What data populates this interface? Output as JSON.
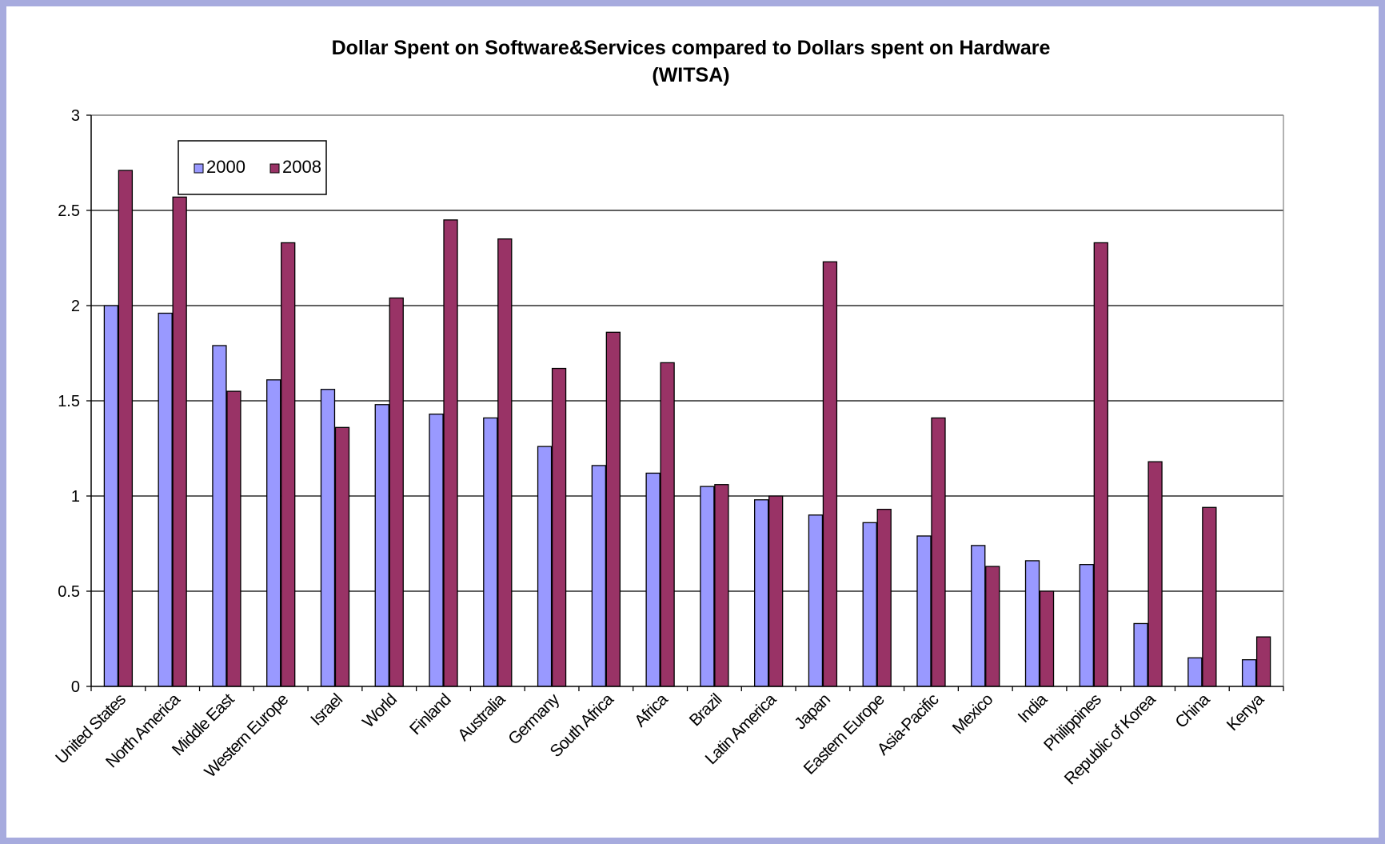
{
  "chart_data": {
    "type": "bar",
    "title": "Dollar Spent on Software&Services compared to Dollars spent on Hardware",
    "subtitle": "(WITSA)",
    "categories": [
      "United States",
      "North America",
      "Middle East",
      "Western Europe",
      "Israel",
      "World",
      "Finland",
      "Australia",
      "Germany",
      "South Africa",
      "Africa",
      "Brazil",
      "Latin America",
      "Japan",
      "Eastern Europe",
      "Asia-Pacific",
      "Mexico",
      "India",
      "Philippines",
      "Republic of Korea",
      "China",
      "Kenya"
    ],
    "series": [
      {
        "name": "2000",
        "color": "#9999ff",
        "values": [
          2.0,
          1.96,
          1.79,
          1.61,
          1.56,
          1.48,
          1.43,
          1.41,
          1.26,
          1.16,
          1.12,
          1.05,
          0.98,
          0.9,
          0.86,
          0.79,
          0.74,
          0.66,
          0.64,
          0.33,
          0.15,
          0.14
        ]
      },
      {
        "name": "2008",
        "color": "#993366",
        "values": [
          2.71,
          2.57,
          1.55,
          2.33,
          1.36,
          2.04,
          2.45,
          2.35,
          1.67,
          1.86,
          1.7,
          1.06,
          1.0,
          2.23,
          0.93,
          1.41,
          0.63,
          0.5,
          2.33,
          1.18,
          0.94,
          0.26
        ]
      }
    ],
    "ylim": [
      0,
      3
    ],
    "yticks": [
      "0",
      "0.5",
      "1",
      "1.5",
      "2",
      "2.5",
      "3"
    ],
    "xlabel": "",
    "ylabel": "",
    "grid": true,
    "legend_position": "top-left"
  }
}
